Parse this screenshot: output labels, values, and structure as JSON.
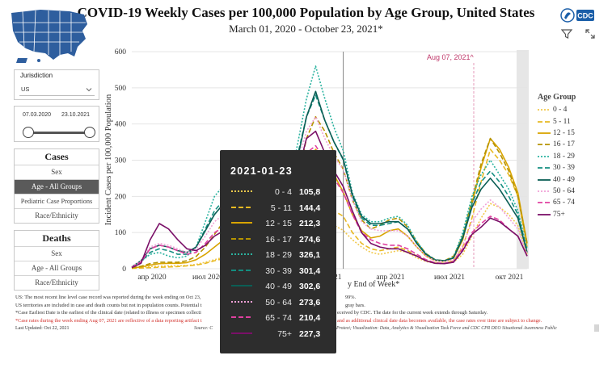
{
  "header": {
    "title": "COVID-19 Weekly Cases per 100,000 Population by Age Group, United States",
    "subtitle": "March 01, 2020 - October 23, 2021*",
    "cdc_logo_text": "CDC"
  },
  "filters": {
    "jurisdiction_label": "Jurisdiction",
    "jurisdiction_value": "US",
    "date_start": "07.03.2020",
    "date_end": "23.10.2021"
  },
  "cases_panel": {
    "title": "Cases",
    "items": [
      "Sex",
      "Age - All Groups",
      "Pediatric Case Proportions",
      "Race/Ethnicity"
    ],
    "active_index": 1
  },
  "deaths_panel": {
    "title": "Deaths",
    "items": [
      "Sex",
      "Age - All Groups",
      "Race/Ethnicity"
    ]
  },
  "tooltip": {
    "date": "2021-01-23",
    "rows": [
      {
        "label": "0 - 4",
        "value": "105,8"
      },
      {
        "label": "5 - 11",
        "value": "144,4"
      },
      {
        "label": "12 - 15",
        "value": "212,3"
      },
      {
        "label": "16 - 17",
        "value": "274,6"
      },
      {
        "label": "18 - 29",
        "value": "326,1"
      },
      {
        "label": "30 - 39",
        "value": "301,4"
      },
      {
        "label": "40 - 49",
        "value": "302,6"
      },
      {
        "label": "50 - 64",
        "value": "273,6"
      },
      {
        "label": "65 - 74",
        "value": "210,4"
      },
      {
        "label": "75+",
        "value": "227,3"
      }
    ]
  },
  "footnotes": {
    "line1": "US: The most recent line level case record was reported during the week ending on Oct 23,",
    "line1_end": "99%.",
    "line2": "US territories are included in case and death counts but not in population counts. Potential t",
    "line2_end": "gray bars.",
    "line3": "*Case Earliest Date is the earliest of the clinical date (related to illness or specimen collecti",
    "line3_end": "eceived by CDC. The date for the current week extends through Saturday.",
    "line4": "*Case rates during the week ending Aug 07, 2021 are reflective of a data reporting artifact t",
    "line4_end": "and as additional clinical date data becomes available, the case rates over time are subject to change.",
    "last_updated": "Last Updated: Oct 22, 2021",
    "source_left": "Source: C",
    "source_right": "Protect; Visualization: Data, Analytics & Visualization Task Force and CDC CPR DEO Situational Awareness Public"
  },
  "chart_data": {
    "type": "line",
    "ylabel": "Incident Cases per 100,000 Population",
    "xlabel_visible": "y End of Week*",
    "ylim": [
      0,
      600
    ],
    "y_ticks": [
      "0",
      "100",
      "200",
      "300",
      "400",
      "500",
      "600"
    ],
    "x_ticks": [
      "апр 2020",
      "июл 2020",
      "2021",
      "апр 2021",
      "июл 2021",
      "окт 2021"
    ],
    "annotation": "Aug 07, 2021^",
    "legend_title": "Age Group",
    "legend_position": "right",
    "x_weeks": [
      0,
      2,
      4,
      6,
      8,
      10,
      12,
      14,
      16,
      18,
      20,
      22,
      24,
      26,
      28,
      30,
      32,
      34,
      36,
      38,
      40,
      42,
      44,
      46,
      48,
      50,
      52,
      54,
      56,
      58,
      60,
      62,
      64,
      66,
      68,
      70,
      72,
      74,
      76,
      78,
      80,
      82,
      84,
      86
    ],
    "series": [
      {
        "name": "0 - 4",
        "color": "#f2c94c",
        "dash": "2,2",
        "values": [
          2,
          4,
          6,
          7,
          8,
          8,
          9,
          12,
          18,
          25,
          32,
          30,
          24,
          20,
          18,
          20,
          25,
          32,
          50,
          75,
          110,
          135,
          120,
          106,
          80,
          60,
          45,
          40,
          45,
          50,
          45,
          30,
          20,
          15,
          14,
          18,
          40,
          90,
          140,
          180,
          170,
          150,
          120,
          40
        ]
      },
      {
        "name": "5 - 11",
        "color": "#e8b923",
        "dash": "6,3",
        "values": [
          1,
          2,
          3,
          4,
          5,
          6,
          8,
          10,
          15,
          22,
          28,
          28,
          22,
          20,
          20,
          25,
          32,
          45,
          70,
          105,
          150,
          170,
          160,
          145,
          100,
          70,
          55,
          50,
          55,
          60,
          50,
          35,
          22,
          16,
          15,
          22,
          60,
          140,
          240,
          330,
          300,
          260,
          200,
          60
        ]
      },
      {
        "name": "12 - 15",
        "color": "#d9a400",
        "dash": "",
        "values": [
          2,
          5,
          10,
          14,
          15,
          15,
          17,
          25,
          40,
          60,
          80,
          70,
          55,
          45,
          45,
          55,
          75,
          110,
          180,
          280,
          330,
          300,
          260,
          212,
          150,
          105,
          85,
          90,
          105,
          110,
          90,
          60,
          35,
          22,
          20,
          30,
          80,
          180,
          280,
          360,
          330,
          280,
          210,
          70
        ]
      },
      {
        "name": "16 - 17",
        "color": "#b59300",
        "dash": "6,3",
        "values": [
          3,
          7,
          14,
          18,
          18,
          18,
          22,
          34,
          60,
          95,
          130,
          110,
          80,
          65,
          65,
          80,
          100,
          150,
          240,
          360,
          420,
          380,
          320,
          275,
          190,
          135,
          110,
          120,
          135,
          140,
          115,
          75,
          42,
          25,
          22,
          35,
          90,
          190,
          290,
          360,
          320,
          270,
          200,
          70
        ]
      },
      {
        "name": "18 - 29",
        "color": "#2bb3a0",
        "dash": "2,2",
        "values": [
          5,
          20,
          40,
          45,
          35,
          30,
          35,
          60,
          130,
          200,
          230,
          190,
          140,
          110,
          110,
          130,
          160,
          220,
          340,
          470,
          560,
          470,
          390,
          326,
          210,
          150,
          130,
          130,
          140,
          145,
          120,
          75,
          42,
          25,
          22,
          32,
          100,
          200,
          260,
          300,
          260,
          220,
          160,
          55
        ]
      },
      {
        "name": "30 - 39",
        "color": "#138e80",
        "dash": "6,3",
        "values": [
          5,
          20,
          45,
          55,
          50,
          40,
          40,
          60,
          110,
          160,
          190,
          165,
          130,
          110,
          110,
          125,
          150,
          200,
          310,
          420,
          480,
          410,
          350,
          301,
          200,
          140,
          120,
          120,
          125,
          130,
          110,
          70,
          40,
          24,
          22,
          30,
          90,
          180,
          240,
          270,
          240,
          200,
          150,
          50
        ]
      },
      {
        "name": "40 - 49",
        "color": "#0b5e55",
        "dash": "",
        "values": [
          5,
          22,
          55,
          65,
          60,
          50,
          45,
          60,
          105,
          150,
          180,
          160,
          125,
          110,
          110,
          125,
          150,
          200,
          300,
          420,
          490,
          410,
          350,
          303,
          205,
          145,
          125,
          125,
          130,
          130,
          110,
          70,
          40,
          24,
          22,
          30,
          85,
          170,
          220,
          250,
          220,
          180,
          140,
          45
        ]
      },
      {
        "name": "50 - 64",
        "color": "#f0a0d6",
        "dash": "2,2",
        "values": [
          5,
          22,
          60,
          70,
          65,
          55,
          45,
          55,
          90,
          130,
          150,
          140,
          110,
          100,
          100,
          115,
          140,
          190,
          290,
          380,
          420,
          360,
          310,
          274,
          190,
          130,
          110,
          105,
          105,
          105,
          90,
          60,
          35,
          22,
          20,
          25,
          65,
          130,
          165,
          190,
          170,
          140,
          110,
          40
        ]
      },
      {
        "name": "65 - 74",
        "color": "#e040a0",
        "dash": "6,3",
        "values": [
          4,
          18,
          55,
          65,
          60,
          50,
          40,
          45,
          70,
          100,
          115,
          110,
          90,
          85,
          90,
          105,
          130,
          170,
          250,
          320,
          340,
          300,
          250,
          210,
          150,
          100,
          80,
          70,
          65,
          65,
          55,
          40,
          25,
          16,
          15,
          20,
          55,
          100,
          125,
          145,
          135,
          110,
          90,
          35
        ]
      },
      {
        "name": "75+",
        "color": "#7a1068",
        "dash": "",
        "values": [
          3,
          15,
          80,
          125,
          110,
          80,
          55,
          50,
          65,
          90,
          105,
          100,
          85,
          80,
          85,
          100,
          125,
          165,
          260,
          360,
          380,
          320,
          270,
          227,
          160,
          100,
          70,
          60,
          55,
          55,
          45,
          35,
          22,
          15,
          14,
          18,
          50,
          95,
          115,
          140,
          130,
          110,
          90,
          35
        ]
      }
    ]
  }
}
